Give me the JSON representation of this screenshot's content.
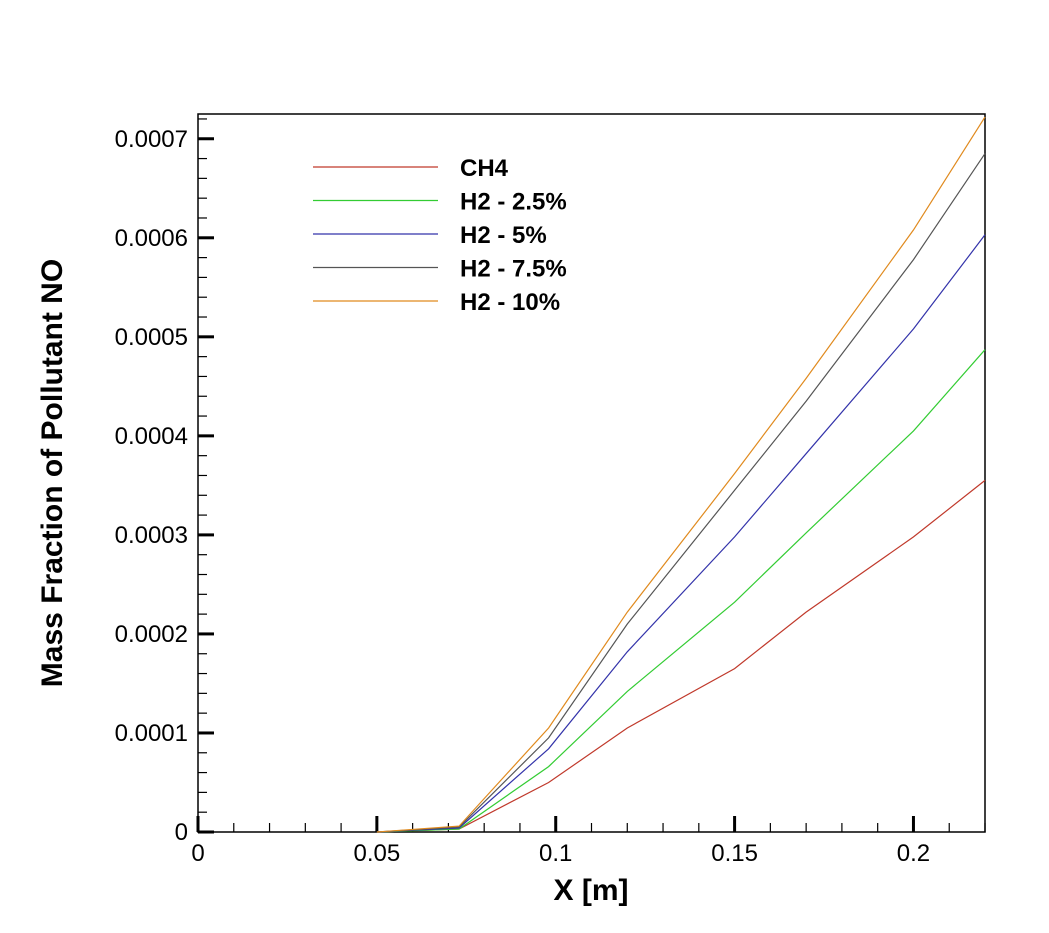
{
  "chart_data": {
    "type": "line",
    "title": "",
    "xlabel": "X [m]",
    "ylabel": "Mass Fraction of Pollutant NO",
    "xlim": [
      0,
      0.22
    ],
    "ylim": [
      0,
      0.000725
    ],
    "x_ticks": [
      {
        "value": 0,
        "label": "0"
      },
      {
        "value": 0.05,
        "label": "0.05"
      },
      {
        "value": 0.1,
        "label": "0.1"
      },
      {
        "value": 0.15,
        "label": "0.15"
      },
      {
        "value": 0.2,
        "label": "0.2"
      }
    ],
    "y_ticks": [
      {
        "value": 0,
        "label": "0"
      },
      {
        "value": 0.0001,
        "label": "0.0001"
      },
      {
        "value": 0.0002,
        "label": "0.0002"
      },
      {
        "value": 0.0003,
        "label": "0.0003"
      },
      {
        "value": 0.0004,
        "label": "0.0004"
      },
      {
        "value": 0.0005,
        "label": "0.0005"
      },
      {
        "value": 0.0006,
        "label": "0.0006"
      },
      {
        "value": 0.0007,
        "label": "0.0007"
      }
    ],
    "grid": false,
    "legend_position": "top-left",
    "series": [
      {
        "name": "CH4",
        "color": "#c0392b",
        "points": [
          [
            0.05,
            0
          ],
          [
            0.073,
            3e-06
          ],
          [
            0.098,
            5e-05
          ],
          [
            0.12,
            0.000105
          ],
          [
            0.15,
            0.000165
          ],
          [
            0.17,
            0.000222
          ],
          [
            0.2,
            0.000298
          ],
          [
            0.22,
            0.000355
          ]
        ]
      },
      {
        "name": "H2 - 2.5%",
        "color": "#33cc33",
        "points": [
          [
            0.05,
            0
          ],
          [
            0.073,
            3e-06
          ],
          [
            0.098,
            6.6e-05
          ],
          [
            0.12,
            0.000142
          ],
          [
            0.15,
            0.000232
          ],
          [
            0.17,
            0.000302
          ],
          [
            0.2,
            0.000405
          ],
          [
            0.22,
            0.000487
          ]
        ]
      },
      {
        "name": "H2 - 5%",
        "color": "#3333aa",
        "points": [
          [
            0.05,
            0
          ],
          [
            0.073,
            4e-06
          ],
          [
            0.098,
            8.4e-05
          ],
          [
            0.12,
            0.000182
          ],
          [
            0.15,
            0.000298
          ],
          [
            0.17,
            0.000382
          ],
          [
            0.2,
            0.000508
          ],
          [
            0.22,
            0.000603
          ]
        ]
      },
      {
        "name": "H2 - 7.5%",
        "color": "#555555",
        "points": [
          [
            0.05,
            0
          ],
          [
            0.073,
            5e-06
          ],
          [
            0.098,
            9.5e-05
          ],
          [
            0.12,
            0.00021
          ],
          [
            0.15,
            0.000345
          ],
          [
            0.17,
            0.000435
          ],
          [
            0.2,
            0.000578
          ],
          [
            0.22,
            0.000685
          ]
        ]
      },
      {
        "name": "H2 - 10%",
        "color": "#e08a1e",
        "points": [
          [
            0.05,
            0
          ],
          [
            0.073,
            6e-06
          ],
          [
            0.098,
            0.000105
          ],
          [
            0.12,
            0.000222
          ],
          [
            0.15,
            0.000362
          ],
          [
            0.17,
            0.000458
          ],
          [
            0.2,
            0.000608
          ],
          [
            0.22,
            0.000722
          ]
        ]
      }
    ]
  }
}
